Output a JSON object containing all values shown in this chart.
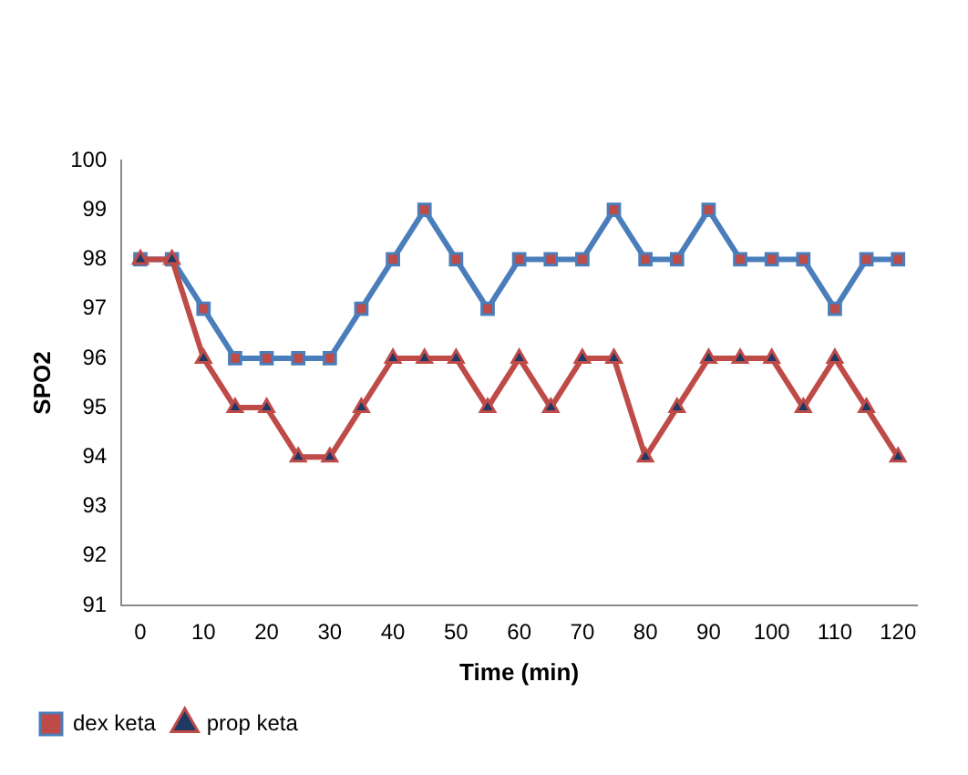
{
  "chart_data": {
    "type": "line",
    "xlabel": "Time (min)",
    "ylabel": "SPO2",
    "x": [
      0,
      5,
      10,
      15,
      20,
      25,
      30,
      35,
      40,
      45,
      50,
      55,
      60,
      65,
      70,
      75,
      80,
      85,
      90,
      95,
      100,
      105,
      110,
      115,
      120
    ],
    "series": [
      {
        "name": "dex keta",
        "color": "#4a7ebb",
        "marker": "square",
        "values": [
          98,
          98,
          97,
          96,
          96,
          96,
          96,
          97,
          98,
          99,
          98,
          97,
          98,
          98,
          98,
          99,
          98,
          98,
          99,
          98,
          98,
          98,
          97,
          98,
          98
        ]
      },
      {
        "name": "prop keta",
        "color": "#be4b48",
        "marker": "triangle",
        "values": [
          98,
          98,
          96,
          95,
          95,
          94,
          94,
          95,
          96,
          96,
          96,
          95,
          96,
          95,
          96,
          96,
          94,
          95,
          96,
          96,
          96,
          95,
          96,
          95,
          94
        ]
      }
    ],
    "xlim": [
      -3,
      123
    ],
    "xticks": [
      0,
      10,
      20,
      30,
      40,
      50,
      60,
      70,
      80,
      90,
      100,
      110,
      120
    ],
    "ylim": [
      91,
      100
    ],
    "yticks": [
      91,
      92,
      93,
      94,
      95,
      96,
      97,
      98,
      99,
      100
    ],
    "grid": false,
    "legend": "bottom left",
    "line_style": "solid"
  }
}
